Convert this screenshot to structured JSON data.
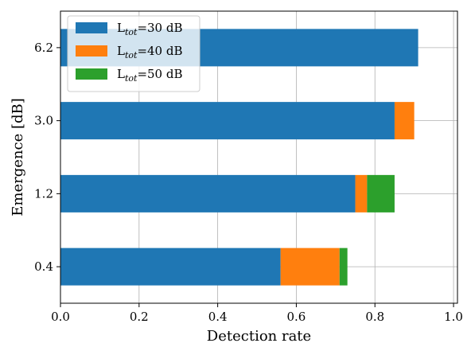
{
  "chart_data": {
    "type": "bar",
    "orientation": "horizontal",
    "stacked": true,
    "categories": [
      "0.4",
      "1.2",
      "3.0",
      "6.2"
    ],
    "series": [
      {
        "name": "L",
        "sub": "tot",
        "suffix": "=30 dB",
        "color": "#1f77b4",
        "values": [
          0.56,
          0.75,
          0.85,
          0.91
        ]
      },
      {
        "name": "L",
        "sub": "tot",
        "suffix": "=40 dB",
        "color": "#ff7f0e",
        "values": [
          0.15,
          0.03,
          0.05,
          0.0
        ]
      },
      {
        "name": "L",
        "sub": "tot",
        "suffix": "=50 dB",
        "color": "#2ca02c",
        "values": [
          0.02,
          0.07,
          0.0,
          0.0
        ]
      }
    ],
    "xlabel": "Detection rate",
    "ylabel": "Emergence [dB]",
    "xlim": [
      0.0,
      1.01
    ],
    "xticks": [
      "0.0",
      "0.2",
      "0.4",
      "0.6",
      "0.8",
      "1.0"
    ],
    "grid": true,
    "legend_position": "top-left"
  }
}
